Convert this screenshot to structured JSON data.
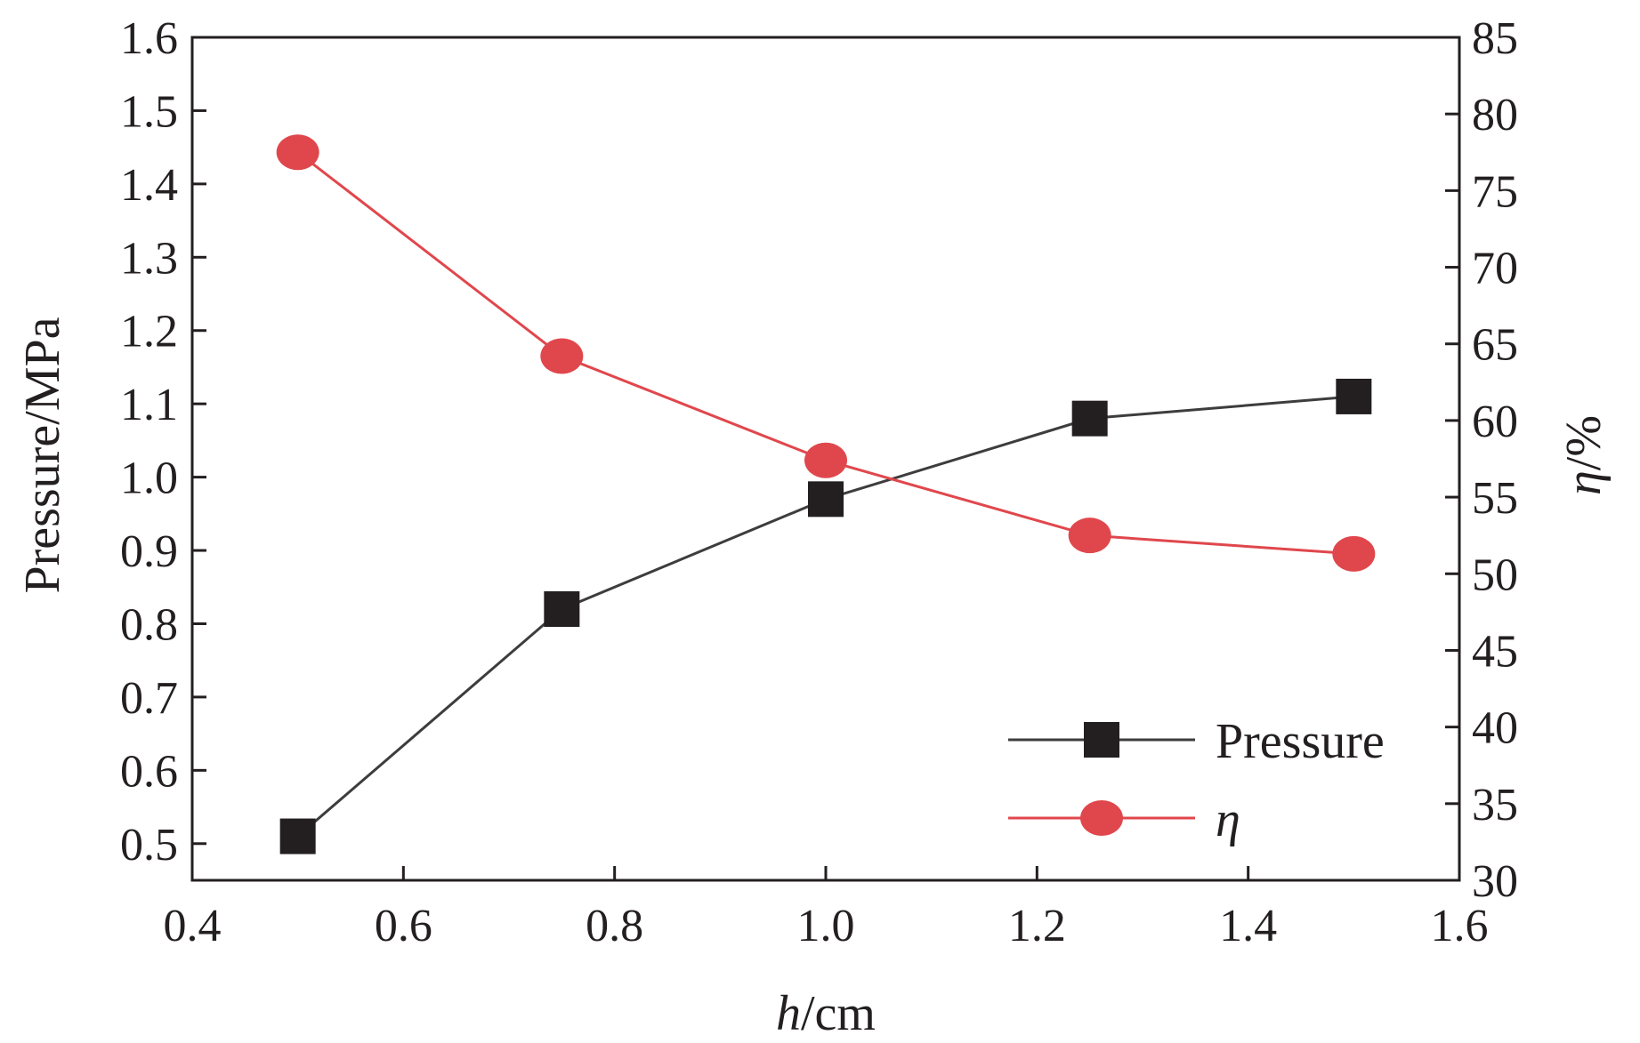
{
  "chart_data": {
    "type": "line",
    "x": [
      0.5,
      0.75,
      1.0,
      1.25,
      1.5
    ],
    "xlabel": {
      "var": "h",
      "unit": "/cm"
    },
    "ylabel_left": "Pressure/MPa",
    "ylabel_right": {
      "var": "η",
      "unit": "/%"
    },
    "xlim": [
      0.4,
      1.6
    ],
    "ylim_left": [
      0.45,
      1.6
    ],
    "ylim_right": [
      30,
      85
    ],
    "x_ticks": [
      "0.4",
      "0.6",
      "0.8",
      "1.0",
      "1.2",
      "1.4",
      "1.6"
    ],
    "y_left_ticks": [
      "0.5",
      "0.6",
      "0.7",
      "0.8",
      "0.9",
      "1.0",
      "1.1",
      "1.2",
      "1.3",
      "1.4",
      "1.5",
      "1.6"
    ],
    "y_right_ticks": [
      "30",
      "35",
      "40",
      "45",
      "50",
      "55",
      "60",
      "65",
      "70",
      "75",
      "80",
      "85"
    ],
    "series": [
      {
        "name": "Pressure",
        "axis": "left",
        "marker": "square",
        "color": "#231f20",
        "values": [
          0.51,
          0.82,
          0.97,
          1.08,
          1.11
        ]
      },
      {
        "name": "η",
        "axis": "right",
        "marker": "circle",
        "color": "#e0474c",
        "values": [
          77.5,
          64.2,
          57.4,
          52.5,
          51.3
        ]
      }
    ],
    "legend": "bottom-right",
    "grid": false
  }
}
